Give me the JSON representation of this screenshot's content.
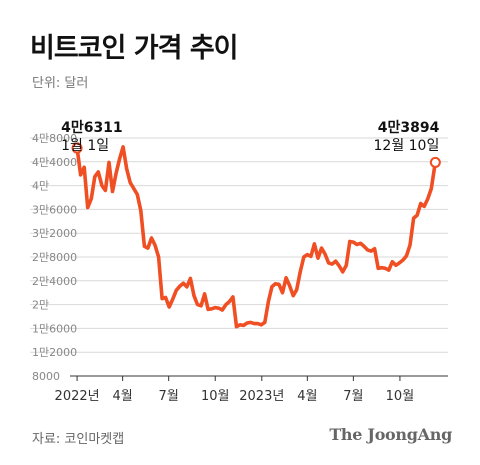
{
  "header": {
    "title": "비트코인 가격 추이",
    "unit": "단위: 달러"
  },
  "footer": {
    "source": "자료: 코인마켓캡",
    "brand": "The JoongAng"
  },
  "colors": {
    "line": "#f04e23",
    "grid": "#d9d9d9",
    "axis": "#333333"
  },
  "chart_data": {
    "type": "line",
    "title": "비트코인 가격 추이",
    "unit": "단위: 달러",
    "ylim": [
      8000,
      48000
    ],
    "y_ticks": [
      {
        "value": 48000,
        "label": "4만8000"
      },
      {
        "value": 44000,
        "label": "4만4000"
      },
      {
        "value": 40000,
        "label": "4만"
      },
      {
        "value": 36000,
        "label": "3만6000"
      },
      {
        "value": 32000,
        "label": "3만2000"
      },
      {
        "value": 28000,
        "label": "2만8000"
      },
      {
        "value": 24000,
        "label": "2만4000"
      },
      {
        "value": 20000,
        "label": "2만"
      },
      {
        "value": 16000,
        "label": "1만6000"
      },
      {
        "value": 12000,
        "label": "1만2000"
      },
      {
        "value": 8000,
        "label": "8000"
      }
    ],
    "x_ticks": [
      {
        "value": "2022-01-01",
        "label": "2022년"
      },
      {
        "value": "2022-04-01",
        "label": "4월"
      },
      {
        "value": "2022-07-01",
        "label": "7월"
      },
      {
        "value": "2022-10-01",
        "label": "10월"
      },
      {
        "value": "2023-01-01",
        "label": "2023년"
      },
      {
        "value": "2023-04-01",
        "label": "4월"
      },
      {
        "value": "2023-07-01",
        "label": "7월"
      },
      {
        "value": "2023-10-01",
        "label": "10월"
      }
    ],
    "annotations": [
      {
        "date": "2022-01-01",
        "value": 46311,
        "value_label": "4만6311",
        "date_label": "1월 1일"
      },
      {
        "date": "2023-12-10",
        "value": 43894,
        "value_label": "4만3894",
        "date_label": "12월 10일"
      }
    ],
    "series": [
      {
        "x": [
          "2022-01-01",
          "2022-01-08",
          "2022-01-15",
          "2022-01-22",
          "2022-01-29",
          "2022-02-05",
          "2022-02-12",
          "2022-02-19",
          "2022-02-26",
          "2022-03-05",
          "2022-03-12",
          "2022-03-19",
          "2022-03-26",
          "2022-04-02",
          "2022-04-09",
          "2022-04-16",
          "2022-04-23",
          "2022-04-30",
          "2022-05-07",
          "2022-05-14",
          "2022-05-21",
          "2022-05-28",
          "2022-06-04",
          "2022-06-11",
          "2022-06-18",
          "2022-06-25",
          "2022-07-02",
          "2022-07-09",
          "2022-07-16",
          "2022-07-23",
          "2022-07-30",
          "2022-08-06",
          "2022-08-13",
          "2022-08-20",
          "2022-08-27",
          "2022-09-03",
          "2022-09-10",
          "2022-09-17",
          "2022-09-24",
          "2022-10-01",
          "2022-10-08",
          "2022-10-15",
          "2022-10-22",
          "2022-10-29",
          "2022-11-05",
          "2022-11-12",
          "2022-11-19",
          "2022-11-26",
          "2022-12-03",
          "2022-12-10",
          "2022-12-17",
          "2022-12-24",
          "2022-12-31",
          "2023-01-07",
          "2023-01-14",
          "2023-01-21",
          "2023-01-28",
          "2023-02-04",
          "2023-02-11",
          "2023-02-18",
          "2023-02-25",
          "2023-03-04",
          "2023-03-11",
          "2023-03-18",
          "2023-03-25",
          "2023-04-01",
          "2023-04-08",
          "2023-04-15",
          "2023-04-22",
          "2023-04-29",
          "2023-05-06",
          "2023-05-13",
          "2023-05-20",
          "2023-05-27",
          "2023-06-03",
          "2023-06-10",
          "2023-06-17",
          "2023-06-24",
          "2023-07-01",
          "2023-07-08",
          "2023-07-15",
          "2023-07-22",
          "2023-07-29",
          "2023-08-05",
          "2023-08-12",
          "2023-08-19",
          "2023-08-26",
          "2023-09-02",
          "2023-09-09",
          "2023-09-16",
          "2023-09-23",
          "2023-09-30",
          "2023-10-07",
          "2023-10-14",
          "2023-10-21",
          "2023-10-28",
          "2023-11-04",
          "2023-11-11",
          "2023-11-18",
          "2023-11-25",
          "2023-12-02",
          "2023-12-10"
        ],
        "values": [
          46311,
          41800,
          43100,
          36300,
          37800,
          41500,
          42300,
          40000,
          39200,
          43900,
          39000,
          42000,
          44500,
          46500,
          42800,
          40500,
          39500,
          38500,
          35800,
          29800,
          29500,
          31200,
          30000,
          28000,
          21000,
          21200,
          19600,
          20900,
          22400,
          23100,
          23600,
          23000,
          24400,
          21500,
          20000,
          19800,
          21800,
          19200,
          19300,
          19500,
          19400,
          19100,
          20000,
          20500,
          21300,
          16300,
          16600,
          16500,
          16900,
          17000,
          16800,
          16800,
          16600,
          17000,
          20500,
          23000,
          23500,
          23400,
          22000,
          24500,
          23200,
          21500,
          22500,
          25500,
          28000,
          28400,
          28100,
          30200,
          27800,
          29500,
          28500,
          27000,
          26800,
          27300,
          26500,
          25500,
          26600,
          30600,
          30500,
          30100,
          30300,
          29800,
          29200,
          29000,
          29400,
          26100,
          26200,
          26100,
          25800,
          27200,
          26600,
          27000,
          27500,
          28200,
          30000,
          34500,
          35000,
          37000,
          36500,
          37800,
          39500,
          43894
        ]
      }
    ]
  }
}
